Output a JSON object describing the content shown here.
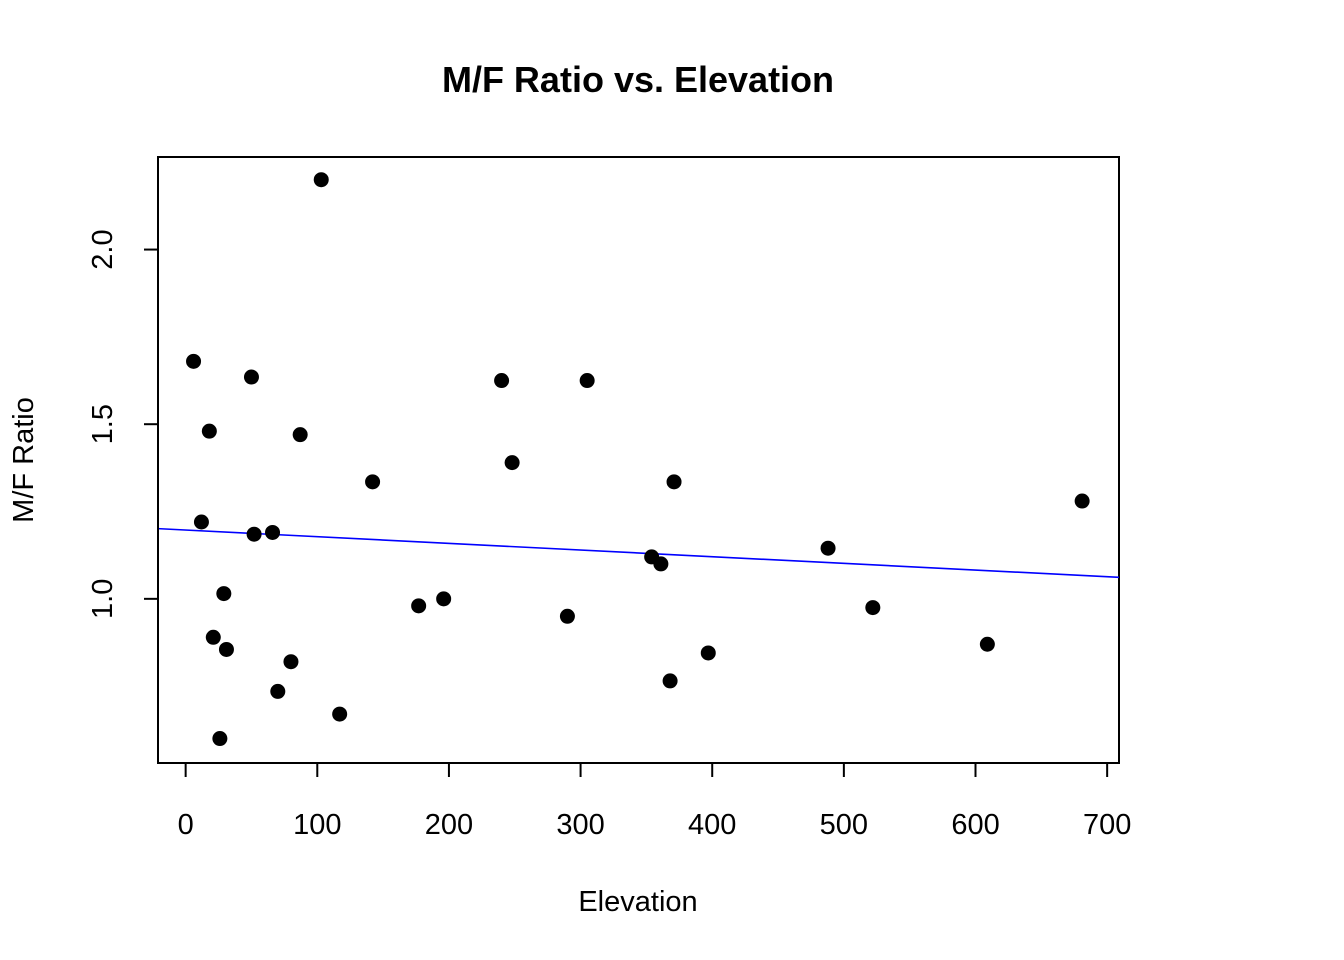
{
  "chart_data": {
    "type": "scatter",
    "title": "M/F Ratio vs. Elevation",
    "xlabel": "Elevation",
    "ylabel": "M/F Ratio",
    "xlim": [
      -21,
      709
    ],
    "ylim": [
      0.53,
      2.265
    ],
    "x_ticks": [
      0,
      100,
      200,
      300,
      400,
      500,
      600,
      700
    ],
    "x_tick_labels": [
      "0",
      "100",
      "200",
      "300",
      "400",
      "500",
      "600",
      "700"
    ],
    "y_ticks": [
      1.0,
      1.5,
      2.0
    ],
    "y_tick_labels": [
      "1.0",
      "1.5",
      "2.0"
    ],
    "grid": false,
    "legend": "none",
    "marker_color": "#000000",
    "series": [
      {
        "type": "scatter",
        "points": [
          {
            "x": 6,
            "y": 1.68
          },
          {
            "x": 12,
            "y": 1.22
          },
          {
            "x": 18,
            "y": 1.48
          },
          {
            "x": 21,
            "y": 0.89
          },
          {
            "x": 26,
            "y": 0.6
          },
          {
            "x": 29,
            "y": 1.015
          },
          {
            "x": 31,
            "y": 0.855
          },
          {
            "x": 50,
            "y": 1.635
          },
          {
            "x": 52,
            "y": 1.185
          },
          {
            "x": 66,
            "y": 1.19
          },
          {
            "x": 70,
            "y": 0.735
          },
          {
            "x": 80,
            "y": 0.82
          },
          {
            "x": 87,
            "y": 1.47
          },
          {
            "x": 103,
            "y": 2.2
          },
          {
            "x": 117,
            "y": 0.67
          },
          {
            "x": 142,
            "y": 1.335
          },
          {
            "x": 177,
            "y": 0.98
          },
          {
            "x": 196,
            "y": 1.0
          },
          {
            "x": 240,
            "y": 1.625
          },
          {
            "x": 248,
            "y": 1.39
          },
          {
            "x": 290,
            "y": 0.95
          },
          {
            "x": 305,
            "y": 1.625
          },
          {
            "x": 354,
            "y": 1.12
          },
          {
            "x": 361,
            "y": 1.1
          },
          {
            "x": 368,
            "y": 0.765
          },
          {
            "x": 371,
            "y": 1.335
          },
          {
            "x": 397,
            "y": 0.845
          },
          {
            "x": 488,
            "y": 1.145
          },
          {
            "x": 522,
            "y": 0.975
          },
          {
            "x": 609,
            "y": 0.87
          },
          {
            "x": 681,
            "y": 1.28
          }
        ]
      }
    ],
    "regression_line": {
      "color": "#0000ff",
      "intercept": 1.197,
      "slope": -0.000191
    }
  }
}
